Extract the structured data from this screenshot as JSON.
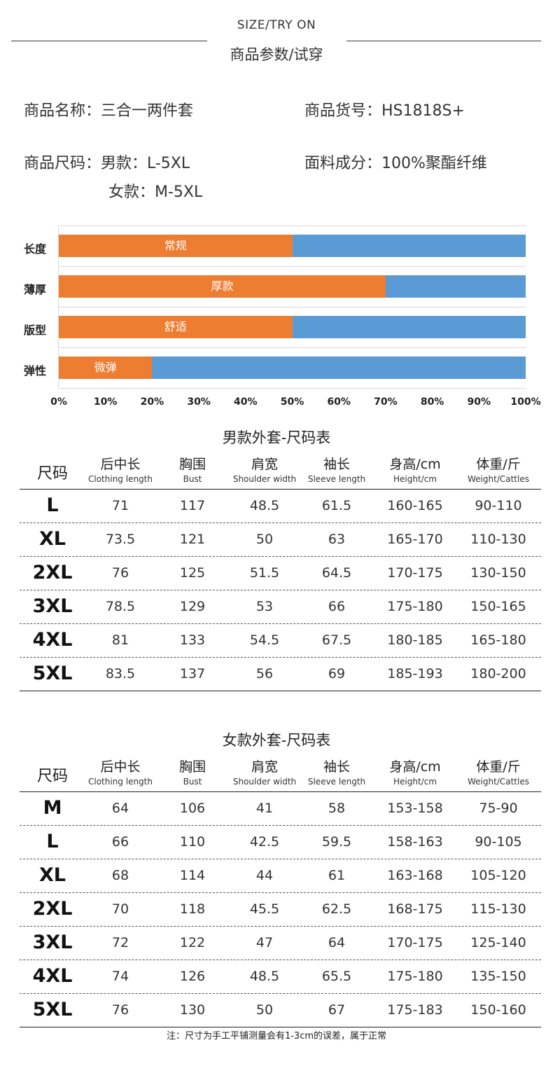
{
  "header": {
    "en": "SIZE/TRY ON",
    "cn": "商品参数/试穿"
  },
  "info": {
    "name": "商品名称：三合一两件套",
    "code": "商品货号：HS1818S+",
    "size_men": "商品尺码：男款：L-5XL",
    "fabric": "面料成分：100%聚酯纤维",
    "size_women": "女款：M-5XL"
  },
  "chart_data": {
    "type": "bar",
    "orientation": "horizontal",
    "stacked": true,
    "categories": [
      "长度",
      "薄厚",
      "版型",
      "弹性"
    ],
    "values": [
      50,
      70,
      50,
      20
    ],
    "bar_labels": [
      "常规",
      "厚款",
      "舒适",
      "微弹"
    ],
    "x_ticks": [
      "0%",
      "10%",
      "20%",
      "30%",
      "40%",
      "50%",
      "60%",
      "70%",
      "80%",
      "90%",
      "100%"
    ],
    "xlim": [
      0,
      100
    ],
    "colors": {
      "fill": "#ed7d31",
      "remainder": "#5b9bd5"
    }
  },
  "columns": [
    {
      "cn": "后中长",
      "en": "Clothing length"
    },
    {
      "cn": "胸围",
      "en": "Bust"
    },
    {
      "cn": "肩宽",
      "en": "Shoulder width"
    },
    {
      "cn": "袖长",
      "en": "Sleeve length"
    },
    {
      "cn": "身高/cm",
      "en": "Height/cm"
    },
    {
      "cn": "体重/斤",
      "en": "Weight/Cattles"
    }
  ],
  "size_header": "尺码",
  "men": {
    "title": "男款外套-尺码表",
    "rows": [
      [
        "L",
        "71",
        "117",
        "48.5",
        "61.5",
        "160-165",
        "90-110"
      ],
      [
        "XL",
        "73.5",
        "121",
        "50",
        "63",
        "165-170",
        "110-130"
      ],
      [
        "2XL",
        "76",
        "125",
        "51.5",
        "64.5",
        "170-175",
        "130-150"
      ],
      [
        "3XL",
        "78.5",
        "129",
        "53",
        "66",
        "175-180",
        "150-165"
      ],
      [
        "4XL",
        "81",
        "133",
        "54.5",
        "67.5",
        "180-185",
        "165-180"
      ],
      [
        "5XL",
        "83.5",
        "137",
        "56",
        "69",
        "185-193",
        "180-200"
      ]
    ]
  },
  "women": {
    "title": "女款外套-尺码表",
    "rows": [
      [
        "M",
        "64",
        "106",
        "41",
        "58",
        "153-158",
        "75-90"
      ],
      [
        "L",
        "66",
        "110",
        "42.5",
        "59.5",
        "158-163",
        "90-105"
      ],
      [
        "XL",
        "68",
        "114",
        "44",
        "61",
        "163-168",
        "105-120"
      ],
      [
        "2XL",
        "70",
        "118",
        "45.5",
        "62.5",
        "168-175",
        "115-130"
      ],
      [
        "3XL",
        "72",
        "122",
        "47",
        "64",
        "170-175",
        "125-140"
      ],
      [
        "4XL",
        "74",
        "126",
        "48.5",
        "65.5",
        "175-180",
        "135-150"
      ],
      [
        "5XL",
        "76",
        "130",
        "50",
        "67",
        "175-183",
        "150-160"
      ]
    ]
  },
  "note": "注：尺寸为手工平铺测量会有1-3cm的误差，属于正常"
}
